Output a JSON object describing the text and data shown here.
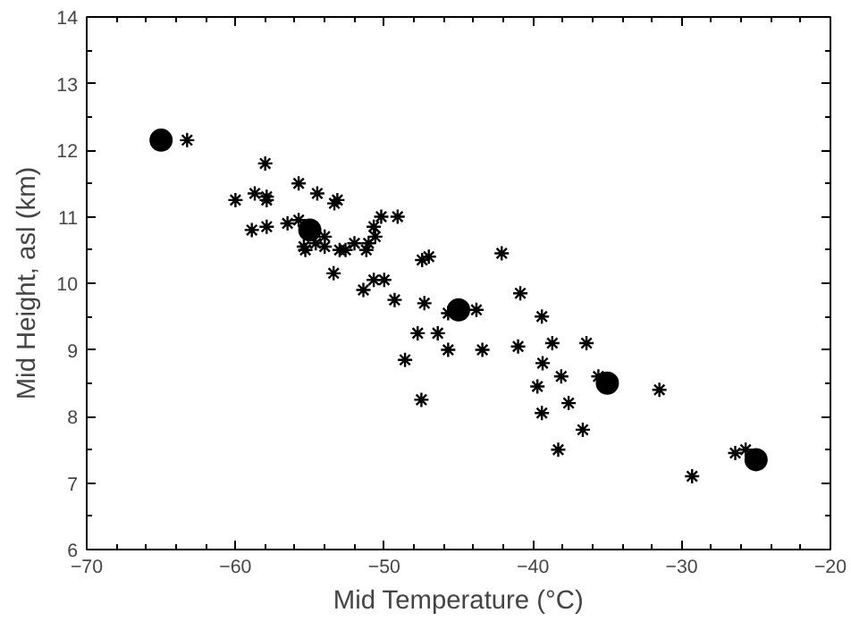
{
  "chart_data": {
    "type": "scatter",
    "xlabel": "Mid Temperature (°C)",
    "ylabel": "Mid Height, asl (km)",
    "xlim": [
      -70,
      -20
    ],
    "ylim": [
      6,
      14
    ],
    "xticks": [
      -70,
      -60,
      -50,
      -40,
      -30,
      -20
    ],
    "yticks": [
      6,
      7,
      8,
      9,
      10,
      11,
      12,
      13,
      14
    ],
    "grid": false,
    "series": [
      {
        "color": "#000000",
        "marker": "cross",
        "x": [
          -63.25,
          -58.0,
          -60.0,
          -58.7,
          -57.9,
          -57.9,
          -58.9,
          -57.9,
          -55.75,
          -54.5,
          -53.35,
          -53.15,
          -56.5,
          -55.75,
          -55.4,
          -55.3,
          -54.6,
          -54.0,
          -54.0,
          -53.0,
          -52.6,
          -52.0,
          -51.2,
          -51.05,
          -50.6,
          -50.7,
          -50.2,
          -49.1,
          -53.4,
          -51.4,
          -50.7,
          -50.0,
          -49.3,
          -47.45,
          -47.0,
          -47.3,
          -47.75,
          -46.4,
          -48.6,
          -45.7,
          -45.7,
          -47.5,
          -43.8,
          -43.4,
          -42.1,
          -40.85,
          -41.0,
          -39.4,
          -38.7,
          -39.35,
          -38.1,
          -39.7,
          -39.4,
          -37.6,
          -36.65,
          -38.3,
          -36.4,
          -35.6,
          -31.5,
          -29.3,
          -26.4,
          -25.7
        ],
        "values": [
          12.15,
          11.8,
          11.25,
          11.35,
          11.3,
          11.25,
          10.8,
          10.85,
          11.5,
          11.35,
          11.2,
          11.25,
          10.9,
          10.95,
          10.55,
          10.5,
          10.6,
          10.7,
          10.55,
          10.5,
          10.5,
          10.6,
          10.5,
          10.6,
          10.7,
          10.85,
          11.0,
          11.0,
          10.15,
          9.9,
          10.05,
          10.05,
          9.75,
          10.35,
          10.4,
          9.7,
          9.25,
          9.25,
          8.85,
          9.0,
          9.55,
          8.25,
          9.6,
          9.0,
          10.45,
          9.85,
          9.05,
          9.5,
          9.1,
          8.8,
          8.6,
          8.45,
          8.05,
          8.2,
          7.8,
          7.5,
          9.1,
          8.6,
          8.4,
          7.1,
          7.45,
          7.5
        ]
      },
      {
        "color": "#000000",
        "marker": "circle",
        "x": [
          -65,
          -55,
          -45,
          -35,
          -25
        ],
        "values": [
          12.15,
          10.8,
          9.6,
          8.5,
          7.35
        ]
      }
    ]
  }
}
